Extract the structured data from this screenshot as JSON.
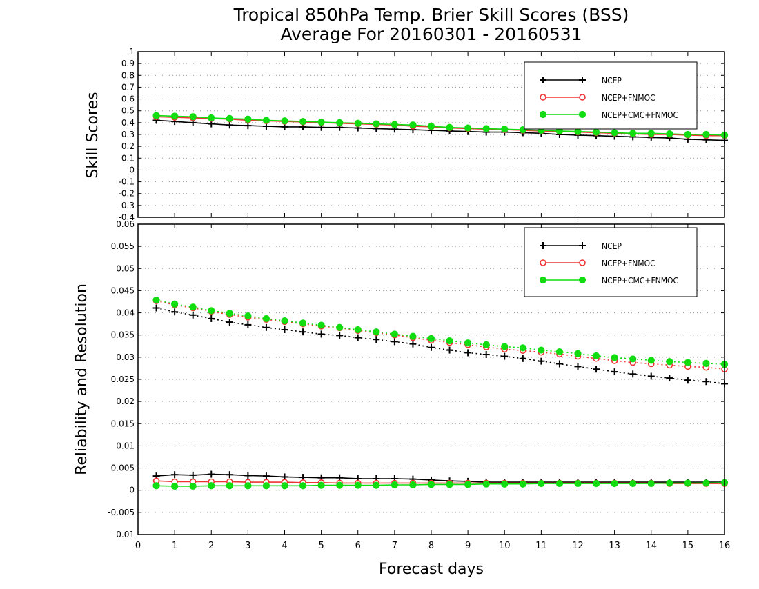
{
  "header": {
    "title": "Tropical 850hPa Temp. Brier Skill Scores (BSS)",
    "subtitle": "Average For 20160301 - 20160531"
  },
  "colors": {
    "ncep": "#000000",
    "fnmoc": "#ee3333",
    "cmc": "#11dd11",
    "grid": "#999999"
  },
  "chart_data": [
    {
      "type": "line",
      "ylabel": "Skill Scores",
      "xlim": [
        0,
        16
      ],
      "ylim": [
        -0.4,
        1
      ],
      "ytick_step": 0.1,
      "xticks": [
        0,
        1,
        2,
        3,
        4,
        5,
        6,
        7,
        8,
        9,
        10,
        11,
        12,
        13,
        14,
        15,
        16
      ],
      "yticks": [
        -0.4,
        -0.3,
        -0.2,
        -0.1,
        0,
        0.1,
        0.2,
        0.3,
        0.4,
        0.5,
        0.6,
        0.7,
        0.8,
        0.9,
        1
      ],
      "ytick_labels": [
        "-0.4",
        "-0.3",
        "-0.2",
        "-0.1",
        "0",
        "0.1",
        "0.2",
        "0.3",
        "0.4",
        "0.5",
        "0.6",
        "0.7",
        "0.8",
        "0.9",
        "1"
      ],
      "grid": true,
      "legend_position": "top-right",
      "x": [
        0.5,
        1,
        1.5,
        2,
        2.5,
        3,
        3.5,
        4,
        4.5,
        5,
        5.5,
        6,
        6.5,
        7,
        7.5,
        8,
        8.5,
        9,
        9.5,
        10,
        10.5,
        11,
        11.5,
        12,
        12.5,
        13,
        13.5,
        14,
        14.5,
        15,
        15.5,
        16
      ],
      "series": [
        {
          "name": "NCEP",
          "color": "#000000",
          "marker": "plus",
          "style": "solid",
          "values": [
            0.42,
            0.41,
            0.4,
            0.39,
            0.38,
            0.375,
            0.37,
            0.365,
            0.365,
            0.36,
            0.36,
            0.355,
            0.35,
            0.345,
            0.34,
            0.335,
            0.33,
            0.325,
            0.32,
            0.32,
            0.315,
            0.31,
            0.3,
            0.295,
            0.29,
            0.285,
            0.28,
            0.275,
            0.27,
            0.26,
            0.255,
            0.25
          ]
        },
        {
          "name": "NCEP+FNMOC",
          "color": "#ee3333",
          "marker": "open-circle",
          "style": "solid",
          "values": [
            0.45,
            0.445,
            0.44,
            0.435,
            0.43,
            0.42,
            0.415,
            0.41,
            0.405,
            0.4,
            0.395,
            0.39,
            0.385,
            0.38,
            0.37,
            0.365,
            0.355,
            0.35,
            0.345,
            0.34,
            0.335,
            0.33,
            0.325,
            0.32,
            0.315,
            0.31,
            0.305,
            0.3,
            0.3,
            0.295,
            0.29,
            0.29
          ]
        },
        {
          "name": "NCEP+CMC+FNMOC",
          "color": "#11dd11",
          "marker": "filled-circle",
          "style": "solid",
          "values": [
            0.46,
            0.455,
            0.45,
            0.44,
            0.435,
            0.43,
            0.42,
            0.415,
            0.41,
            0.405,
            0.4,
            0.395,
            0.39,
            0.385,
            0.38,
            0.37,
            0.36,
            0.355,
            0.35,
            0.345,
            0.34,
            0.335,
            0.33,
            0.325,
            0.32,
            0.315,
            0.31,
            0.31,
            0.305,
            0.3,
            0.3,
            0.295
          ]
        }
      ]
    },
    {
      "type": "line",
      "ylabel": "Reliability and Resolution",
      "xlabel": "Forecast days",
      "xlim": [
        0,
        16
      ],
      "ylim": [
        -0.01,
        0.06
      ],
      "ytick_step": 0.005,
      "xticks": [
        0,
        1,
        2,
        3,
        4,
        5,
        6,
        7,
        8,
        9,
        10,
        11,
        12,
        13,
        14,
        15,
        16
      ],
      "yticks": [
        -0.01,
        -0.005,
        0,
        0.005,
        0.01,
        0.015,
        0.02,
        0.025,
        0.03,
        0.035,
        0.04,
        0.045,
        0.05,
        0.055,
        0.06
      ],
      "ytick_labels": [
        "-0.01",
        "-0.005",
        "0",
        "0.005",
        "0.01",
        "0.015",
        "0.02",
        "0.025",
        "0.03",
        "0.035",
        "0.04",
        "0.045",
        "0.05",
        "0.055",
        "0.06"
      ],
      "grid": true,
      "legend_position": "top-right",
      "x": [
        0.5,
        1,
        1.5,
        2,
        2.5,
        3,
        3.5,
        4,
        4.5,
        5,
        5.5,
        6,
        6.5,
        7,
        7.5,
        8,
        8.5,
        9,
        9.5,
        10,
        10.5,
        11,
        11.5,
        12,
        12.5,
        13,
        13.5,
        14,
        14.5,
        15,
        15.5,
        16
      ],
      "legend": [
        {
          "name": "NCEP",
          "color": "#000000",
          "marker": "plus"
        },
        {
          "name": "NCEP+FNMOC",
          "color": "#ee3333",
          "marker": "open-circle"
        },
        {
          "name": "NCEP+CMC+FNMOC",
          "color": "#11dd11",
          "marker": "filled-circle"
        }
      ],
      "series": [
        {
          "name": "NCEP",
          "color": "#000000",
          "marker": "plus",
          "style": "dotted",
          "values": [
            0.0411,
            0.0402,
            0.0395,
            0.0387,
            0.0379,
            0.0373,
            0.0367,
            0.0362,
            0.0357,
            0.0352,
            0.0349,
            0.0344,
            0.034,
            0.0335,
            0.033,
            0.0322,
            0.0316,
            0.031,
            0.0306,
            0.0302,
            0.0297,
            0.0291,
            0.0285,
            0.0279,
            0.0273,
            0.0267,
            0.0262,
            0.0257,
            0.0253,
            0.0248,
            0.0245,
            0.024
          ]
        },
        {
          "name": "NCEP+FNMOC",
          "color": "#ee3333",
          "marker": "open-circle",
          "style": "dotted",
          "values": [
            0.0427,
            0.0418,
            0.0411,
            0.0403,
            0.0396,
            0.039,
            0.0385,
            0.038,
            0.0375,
            0.037,
            0.0366,
            0.036,
            0.0355,
            0.035,
            0.0344,
            0.0338,
            0.0333,
            0.0328,
            0.0323,
            0.0318,
            0.0315,
            0.0311,
            0.0307,
            0.0302,
            0.0297,
            0.0292,
            0.0288,
            0.0285,
            0.0282,
            0.0279,
            0.0277,
            0.0273
          ]
        },
        {
          "name": "NCEP+CMC+FNMOC",
          "color": "#11dd11",
          "marker": "filled-circle",
          "style": "dotted",
          "values": [
            0.0429,
            0.042,
            0.0413,
            0.0405,
            0.0399,
            0.0393,
            0.0387,
            0.0382,
            0.0377,
            0.0372,
            0.0367,
            0.0362,
            0.0357,
            0.0352,
            0.0347,
            0.0342,
            0.0337,
            0.0332,
            0.0328,
            0.0324,
            0.0321,
            0.0316,
            0.0312,
            0.0308,
            0.0303,
            0.0299,
            0.0296,
            0.0293,
            0.029,
            0.0288,
            0.0286,
            0.0284
          ]
        },
        {
          "name": "NCEP",
          "color": "#000000",
          "marker": "plus",
          "style": "solid",
          "values": [
            0.0032,
            0.0035,
            0.0034,
            0.0036,
            0.0035,
            0.0033,
            0.0032,
            0.003,
            0.0029,
            0.0028,
            0.0028,
            0.0026,
            0.0026,
            0.0026,
            0.0025,
            0.0023,
            0.0021,
            0.002,
            0.0018,
            0.0018,
            0.0018,
            0.0018,
            0.0018,
            0.0018,
            0.0018,
            0.0018,
            0.0018,
            0.0018,
            0.0018,
            0.0018,
            0.0018,
            0.0018
          ]
        },
        {
          "name": "NCEP+FNMOC",
          "color": "#ee3333",
          "marker": "open-circle",
          "style": "solid",
          "values": [
            0.0021,
            0.0019,
            0.0019,
            0.0019,
            0.0019,
            0.0018,
            0.0018,
            0.0018,
            0.0017,
            0.0017,
            0.0016,
            0.0016,
            0.0016,
            0.0016,
            0.0016,
            0.0016,
            0.0016,
            0.0016,
            0.0016,
            0.0016,
            0.0016,
            0.0016,
            0.0016,
            0.0016,
            0.0016,
            0.0016,
            0.0016,
            0.0016,
            0.0015,
            0.0015,
            0.0015,
            0.0015
          ]
        },
        {
          "name": "NCEP+CMC+FNMOC",
          "color": "#11dd11",
          "marker": "filled-circle",
          "style": "solid",
          "values": [
            0.001,
            0.0009,
            0.0009,
            0.001,
            0.001,
            0.001,
            0.001,
            0.001,
            0.001,
            0.0011,
            0.0011,
            0.0011,
            0.0011,
            0.0012,
            0.0012,
            0.0013,
            0.0013,
            0.0013,
            0.0014,
            0.0014,
            0.0014,
            0.0015,
            0.0015,
            0.0015,
            0.0015,
            0.0015,
            0.0015,
            0.0015,
            0.0016,
            0.0016,
            0.0016,
            0.0017
          ]
        }
      ]
    }
  ]
}
